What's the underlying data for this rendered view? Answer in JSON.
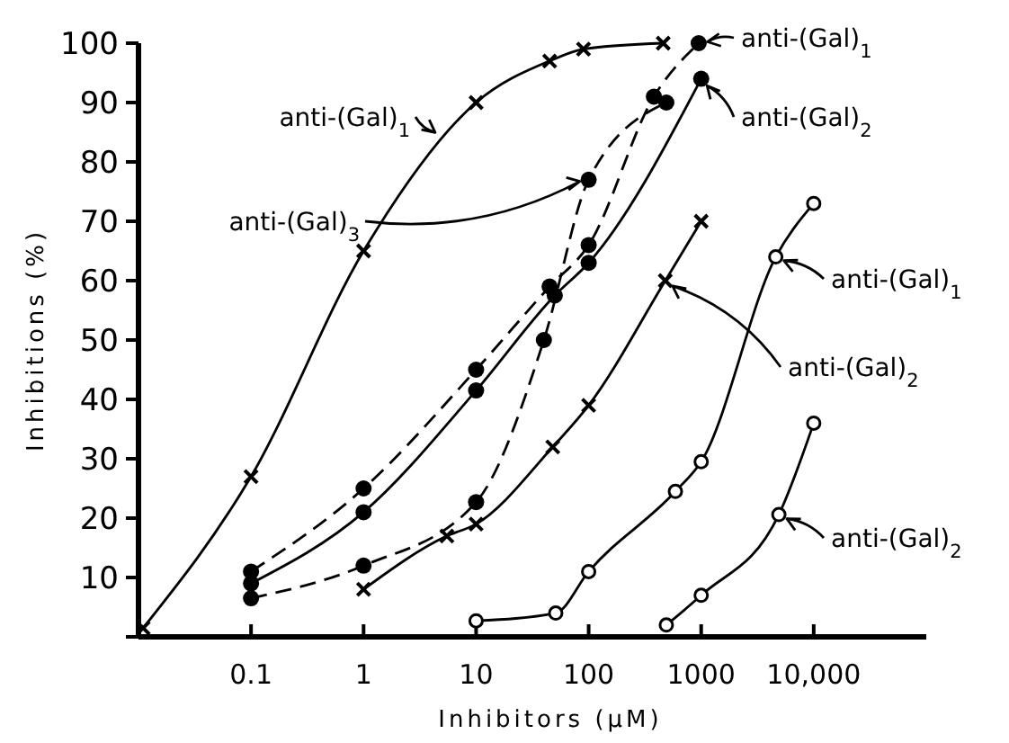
{
  "chart_data": {
    "type": "line",
    "xlabel": "Inhibitors (μM)",
    "ylabel": "Inhibitions (%)",
    "log": "x",
    "xlim": [
      0.01,
      100000
    ],
    "xticks": [
      {
        "value": 0.01,
        "label": null
      },
      0.1,
      1,
      10,
      100,
      1000,
      {
        "value": 10000,
        "label": "10,000"
      }
    ],
    "ylim": [
      0,
      100
    ],
    "yticks": [
      {
        "value": 0,
        "label": null
      },
      10,
      20,
      30,
      40,
      50,
      60,
      70,
      80,
      90,
      100
    ],
    "grid": false,
    "series": [
      {
        "color": "#000000",
        "marker": "cross",
        "line_style": "solid",
        "x": [
          0.011,
          0.1,
          1,
          10,
          45,
          90,
          460
        ],
        "values": [
          1.5,
          27,
          65,
          90,
          97,
          99,
          100
        ]
      },
      {
        "color": "#000000",
        "marker": "circle",
        "line_style": "dashed",
        "x": [
          0.1,
          1,
          10,
          45,
          100,
          380,
          950
        ],
        "values": [
          11,
          25,
          45,
          59,
          66,
          91,
          100
        ]
      },
      {
        "color": "#000000",
        "marker": "circle",
        "line_style": "solid",
        "x": [
          0.1,
          1,
          10,
          50,
          100,
          1000
        ],
        "values": [
          9,
          21,
          41.5,
          57.5,
          63,
          94
        ]
      },
      {
        "color": "#000000",
        "marker": "circle",
        "line_style": "dashed",
        "x": [
          0.1,
          1,
          10,
          40,
          100,
          490
        ],
        "values": [
          6.5,
          12,
          22.7,
          50,
          77,
          90
        ]
      },
      {
        "color": "#000000",
        "marker": "cross",
        "line_style": "solid",
        "x": [
          1,
          5.5,
          10,
          48,
          100,
          480,
          1000
        ],
        "values": [
          8,
          17,
          19,
          32,
          39,
          60,
          70
        ]
      },
      {
        "color": "#000000",
        "marker": "circle-open",
        "line_style": "solid",
        "x": [
          10,
          51,
          100,
          590,
          1000,
          4600,
          10000
        ],
        "values": [
          2.7,
          4,
          11,
          24.5,
          29.5,
          64,
          73
        ]
      },
      {
        "color": "#000000",
        "marker": "circle-open",
        "line_style": "solid",
        "x": [
          490,
          1000,
          4900,
          10000
        ],
        "values": [
          2,
          7,
          20.6,
          36
        ]
      }
    ],
    "annotations": [
      {
        "text": "anti-(Gal)$_{1}$",
        "x": 5,
        "y": 84
      },
      {
        "text": "anti-(Gal)$_{3}$",
        "x": 100,
        "y": 77
      },
      {
        "text": "anti-(Gal)$_{1}$",
        "x": 950,
        "y": 100
      },
      {
        "text": "anti-(Gal)$_{2}$",
        "x": 1000,
        "y": 94
      },
      {
        "text": "anti-(Gal)$_{1}$",
        "x": 4600,
        "y": 64
      },
      {
        "text": "anti-(Gal)$_{2}$",
        "x": 480,
        "y": 60
      },
      {
        "text": "anti-(Gal)$_{2}$",
        "x": 4900,
        "y": 20.6
      }
    ]
  }
}
